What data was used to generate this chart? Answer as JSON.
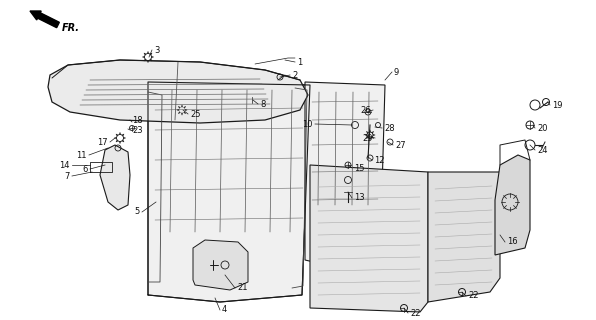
{
  "bg_color": "#ffffff",
  "line_color": "#1a1a1a",
  "gray_fill": "#d8d8d8",
  "light_gray": "#e8e8e8"
}
